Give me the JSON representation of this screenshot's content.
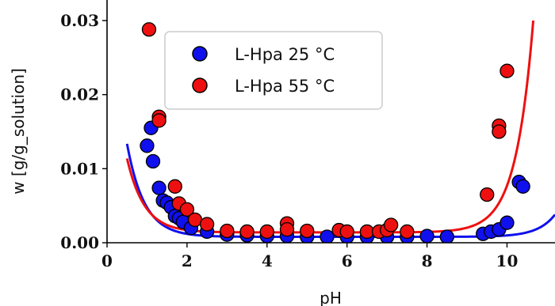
{
  "chart_data": {
    "type": "scatter",
    "title": "",
    "xlabel": "pH",
    "ylabel": "w [g/g_solution]",
    "xlim": [
      0,
      11.2
    ],
    "ylim": [
      0,
      0.03
    ],
    "xticks": [
      0,
      2,
      4,
      6,
      8,
      10
    ],
    "xtick_labels": [
      "0",
      "2",
      "4",
      "6",
      "8",
      "10"
    ],
    "yticks": [
      0,
      0.01,
      0.02,
      0.03
    ],
    "ytick_labels": [
      "0.00",
      "0.01",
      "0.02",
      "0.03"
    ],
    "grid": false,
    "legend_position": "top-center",
    "series": [
      {
        "name": "L-Hpa 25 °C",
        "color": "#1010ee",
        "points": [
          [
            1.0,
            0.0131
          ],
          [
            1.1,
            0.0155
          ],
          [
            1.15,
            0.011
          ],
          [
            1.3,
            0.0074
          ],
          [
            1.4,
            0.0057
          ],
          [
            1.5,
            0.0054
          ],
          [
            1.6,
            0.0048
          ],
          [
            1.7,
            0.0036
          ],
          [
            1.8,
            0.0033
          ],
          [
            1.9,
            0.0028
          ],
          [
            2.1,
            0.002
          ],
          [
            2.5,
            0.0015
          ],
          [
            3.0,
            0.0011
          ],
          [
            3.5,
            0.001
          ],
          [
            4.0,
            0.0009
          ],
          [
            4.5,
            0.0009
          ],
          [
            5.0,
            0.0008
          ],
          [
            5.5,
            0.0008
          ],
          [
            6.0,
            0.0008
          ],
          [
            6.5,
            0.0008
          ],
          [
            7.0,
            0.0008
          ],
          [
            7.5,
            0.0008
          ],
          [
            8.0,
            0.0009
          ],
          [
            8.5,
            0.0008
          ],
          [
            9.4,
            0.0012
          ],
          [
            9.6,
            0.0015
          ],
          [
            9.8,
            0.0018
          ],
          [
            10.0,
            0.0027
          ],
          [
            10.3,
            0.0082
          ],
          [
            10.4,
            0.0076
          ]
        ],
        "curve": {
          "a": 5e-05,
          "xa": 2.9,
          "b": 3e-05,
          "xb": 9.2,
          "c": 0.0008
        }
      },
      {
        "name": "L-Hpa 55 °C",
        "color": "#ee1010",
        "points": [
          [
            1.05,
            0.0288
          ],
          [
            1.3,
            0.017
          ],
          [
            1.3,
            0.0165
          ],
          [
            1.7,
            0.0076
          ],
          [
            1.8,
            0.0053
          ],
          [
            2.0,
            0.0045
          ],
          [
            2.2,
            0.0031
          ],
          [
            2.5,
            0.0025
          ],
          [
            3.0,
            0.0016
          ],
          [
            3.5,
            0.0015
          ],
          [
            4.0,
            0.0015
          ],
          [
            4.5,
            0.0026
          ],
          [
            4.5,
            0.0018
          ],
          [
            5.0,
            0.0016
          ],
          [
            5.8,
            0.0017
          ],
          [
            6.0,
            0.0015
          ],
          [
            6.5,
            0.0015
          ],
          [
            6.8,
            0.0015
          ],
          [
            7.0,
            0.0017
          ],
          [
            7.1,
            0.0024
          ],
          [
            7.5,
            0.0015
          ],
          [
            9.5,
            0.0065
          ],
          [
            9.8,
            0.0158
          ],
          [
            9.8,
            0.015
          ],
          [
            10.0,
            0.0232
          ]
        ],
        "curve": {
          "a": 5e-05,
          "xa": 2.8,
          "b": 0.0001,
          "xb": 8.2,
          "c": 0.0014
        }
      }
    ]
  }
}
